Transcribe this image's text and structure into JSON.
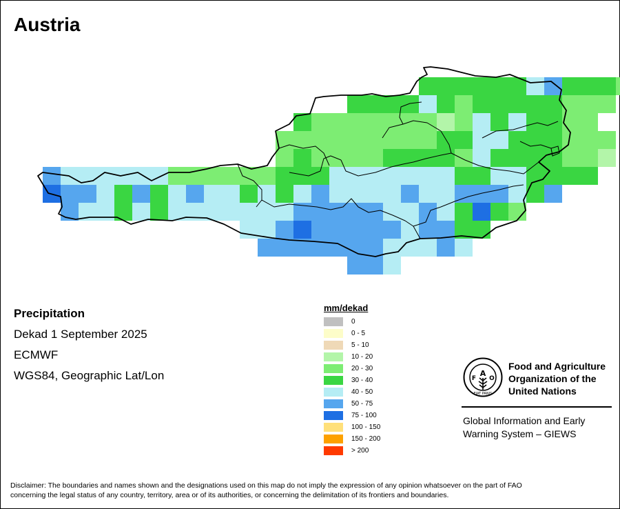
{
  "map": {
    "title": "Austria",
    "info": {
      "variable": "Precipitation",
      "period": "Dekad 1 September 2025",
      "source": "ECMWF",
      "projection": "WGS84, Geographic Lat/Lon"
    },
    "legend": {
      "title": "mm/dekad",
      "classes": [
        {
          "label": "0",
          "color": "#c0c0c0"
        },
        {
          "label": "0 - 5",
          "color": "#fdfdc9"
        },
        {
          "label": "5 - 10",
          "color": "#efd9b7"
        },
        {
          "label": "10 - 20",
          "color": "#b3f5a9"
        },
        {
          "label": "20 - 30",
          "color": "#7ded73"
        },
        {
          "label": "30 - 40",
          "color": "#3ad642"
        },
        {
          "label": "40 - 50",
          "color": "#b5edf4"
        },
        {
          "label": "50 - 75",
          "color": "#56a6ee"
        },
        {
          "label": "75 - 100",
          "color": "#1e6fe3"
        },
        {
          "label": "100 - 150",
          "color": "#ffe07a"
        },
        {
          "label": "150 - 200",
          "color": "#fda100"
        },
        {
          "label": "> 200",
          "color": "#ff3a00"
        }
      ]
    }
  },
  "logo": {
    "name_line1": "Food and Agriculture",
    "name_line2": "Organization of the",
    "name_line3": "United Nations",
    "emblem_text": "FIAT PANIS",
    "system_line1": "Global Information and Early",
    "system_line2": "Warning System – GIEWS"
  },
  "disclaimer": {
    "line1": "Disclaimer: The boundaries and names shown and the designations used on this map do not imply the expression of any opinion whatsoever on the part of FAO",
    "line2": "concerning the legal status of any country, territory, area or of its authorities, or concerning the delimitation of its frontiers and boundaries."
  }
}
